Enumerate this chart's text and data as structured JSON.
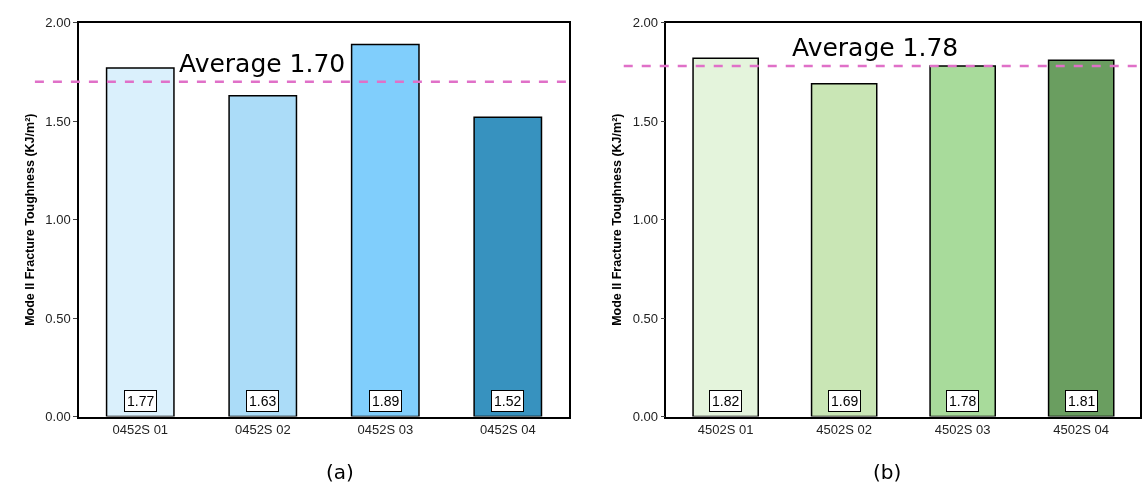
{
  "chart_data": [
    {
      "type": "bar",
      "ylabel": "Mode II Fracture Toughness (KJ/m²)",
      "categories": [
        "0452S 01",
        "0452S 02",
        "0452S 03",
        "0452S 04"
      ],
      "values": [
        1.77,
        1.63,
        1.89,
        1.52
      ],
      "colors": [
        "#daf0fc",
        "#abdcf8",
        "#80cefc",
        "#3792bf"
      ],
      "ylim": [
        0,
        2
      ],
      "yticks": [
        {
          "value": 0,
          "label": "0.00"
        },
        {
          "value": 0.5,
          "label": "0.50"
        },
        {
          "value": 1,
          "label": "1.00"
        },
        {
          "value": 1.5,
          "label": "1.50"
        },
        {
          "value": 2,
          "label": "2.00"
        }
      ],
      "data_labels": true,
      "ref_lines": [
        {
          "axis": "y",
          "value": 1.7,
          "label": "Average 1.70",
          "color": "#e070c8",
          "line_style": "dashed"
        }
      ],
      "annotations": [
        "(a)"
      ]
    },
    {
      "type": "bar",
      "ylabel": "Mode II Fracture Toughness (KJ/m²)",
      "categories": [
        "4502S 01",
        "4502S 02",
        "4502S 03",
        "4502S 04"
      ],
      "values": [
        1.82,
        1.69,
        1.78,
        1.81
      ],
      "colors": [
        "#e4f4dc",
        "#c9e6b5",
        "#a8db9b",
        "#6a9e60"
      ],
      "ylim": [
        0,
        2
      ],
      "yticks": [
        {
          "value": 0,
          "label": "0.00"
        },
        {
          "value": 0.5,
          "label": "0.50"
        },
        {
          "value": 1,
          "label": "1.00"
        },
        {
          "value": 1.5,
          "label": "1.50"
        },
        {
          "value": 2,
          "label": "2.00"
        }
      ],
      "data_labels": true,
      "ref_lines": [
        {
          "axis": "y",
          "value": 1.78,
          "label": "Average 1.78",
          "color": "#e070c8",
          "line_style": "dashed"
        }
      ],
      "annotations": [
        "(b)"
      ]
    }
  ]
}
